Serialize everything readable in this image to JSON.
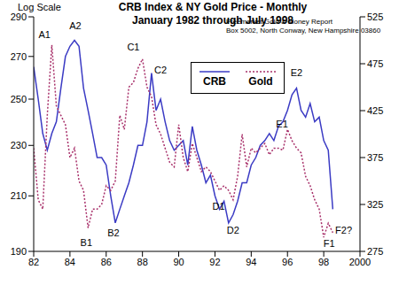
{
  "chart_data": {
    "type": "line",
    "title": "CRB Index & NY Gold Price  - Monthly",
    "subtitle": "January 1982 through July 1998",
    "y_label": "Log Scale",
    "log": "y",
    "legend": "top",
    "grid": false,
    "source": [
      "Freemarket Gold & Money Report",
      "Box 5002, North Conway, New Hampshire 03860"
    ],
    "x": [
      1982.0,
      1982.25,
      1982.5,
      1982.75,
      1983.0,
      1983.25,
      1983.5,
      1983.75,
      1984.0,
      1984.25,
      1984.5,
      1984.75,
      1985.0,
      1985.25,
      1985.5,
      1985.75,
      1986.0,
      1986.25,
      1986.5,
      1986.75,
      1987.0,
      1987.25,
      1987.5,
      1987.75,
      1988.0,
      1988.25,
      1988.5,
      1988.75,
      1989.0,
      1989.25,
      1989.5,
      1989.75,
      1990.0,
      1990.25,
      1990.5,
      1990.75,
      1991.0,
      1991.25,
      1991.5,
      1991.75,
      1992.0,
      1992.25,
      1992.5,
      1992.75,
      1993.0,
      1993.25,
      1993.5,
      1993.75,
      1994.0,
      1994.25,
      1994.5,
      1994.75,
      1995.0,
      1995.25,
      1995.5,
      1995.75,
      1996.0,
      1996.25,
      1996.5,
      1996.75,
      1997.0,
      1997.25,
      1997.5,
      1997.75,
      1998.0,
      1998.25,
      1998.5
    ],
    "xlim": [
      1982,
      2000
    ],
    "xticks": [
      {
        "value": 1982,
        "label": "82"
      },
      {
        "value": 1984,
        "label": "84"
      },
      {
        "value": 1986,
        "label": "86"
      },
      {
        "value": 1988,
        "label": "88"
      },
      {
        "value": 1990,
        "label": "90"
      },
      {
        "value": 1992,
        "label": "92"
      },
      {
        "value": 1994,
        "label": "94"
      },
      {
        "value": 1996,
        "label": "96"
      },
      {
        "value": 1998,
        "label": "98"
      },
      2000
    ],
    "ylim": [
      190,
      290
    ],
    "yticks": [
      190,
      210,
      230,
      250,
      270,
      290
    ],
    "y2lim": [
      275,
      525
    ],
    "y2ticks": [
      275,
      325,
      375,
      425,
      475,
      525
    ],
    "series": [
      {
        "name": "CRB",
        "color": "#3b3bc4",
        "line_style": "solid",
        "values": [
          265,
          250,
          235,
          228,
          235,
          240,
          255,
          270,
          275,
          278,
          275,
          255,
          245,
          235,
          225,
          225,
          222,
          210,
          200,
          205,
          210,
          215,
          222,
          230,
          230,
          240,
          262,
          245,
          250,
          240,
          232,
          228,
          230,
          232,
          222,
          238,
          228,
          222,
          215,
          218,
          210,
          205,
          208,
          200,
          203,
          208,
          215,
          215,
          222,
          225,
          230,
          232,
          235,
          232,
          238,
          240,
          245,
          252,
          255,
          245,
          242,
          248,
          240,
          242,
          232,
          228,
          205
        ]
      },
      {
        "name": "Gold",
        "color": "#a8306a",
        "line_style": "dotted",
        "axis": "y2",
        "values": [
          385,
          330,
          320,
          420,
          495,
          430,
          420,
          410,
          375,
          385,
          350,
          340,
          300,
          320,
          320,
          325,
          345,
          340,
          350,
          420,
          405,
          450,
          455,
          470,
          480,
          450,
          440,
          410,
          400,
          385,
          370,
          365,
          410,
          375,
          360,
          390,
          375,
          360,
          365,
          360,
          350,
          340,
          345,
          340,
          330,
          355,
          400,
          365,
          385,
          380,
          385,
          390,
          378,
          385,
          385,
          383,
          405,
          393,
          385,
          380,
          355,
          345,
          330,
          320,
          290,
          305,
          295
        ]
      }
    ],
    "annotations": [
      {
        "text": "A1",
        "x": 1982.6,
        "y": 505,
        "axis": "y2"
      },
      {
        "text": "A2",
        "x": 1984.3,
        "y": 285,
        "axis": "y"
      },
      {
        "text": "B1",
        "x": 1984.9,
        "y": 283,
        "axis": "y2"
      },
      {
        "text": "B2",
        "x": 1986.4,
        "y": 196,
        "axis": "y"
      },
      {
        "text": "C1",
        "x": 1987.5,
        "y": 492,
        "axis": "y2"
      },
      {
        "text": "C2",
        "x": 1989.0,
        "y": 263,
        "axis": "y"
      },
      {
        "text": "D1",
        "x": 1992.2,
        "y": 322,
        "axis": "y2"
      },
      {
        "text": "D2",
        "x": 1993.0,
        "y": 197,
        "axis": "y"
      },
      {
        "text": "E1",
        "x": 1995.7,
        "y": 410,
        "axis": "y2"
      },
      {
        "text": "E2",
        "x": 1996.5,
        "y": 262,
        "axis": "y"
      },
      {
        "text": "F1",
        "x": 1998.3,
        "y": 282,
        "axis": "y2"
      },
      {
        "text": "F2?",
        "x": 1999.1,
        "y": 297,
        "axis": "y2"
      }
    ]
  }
}
